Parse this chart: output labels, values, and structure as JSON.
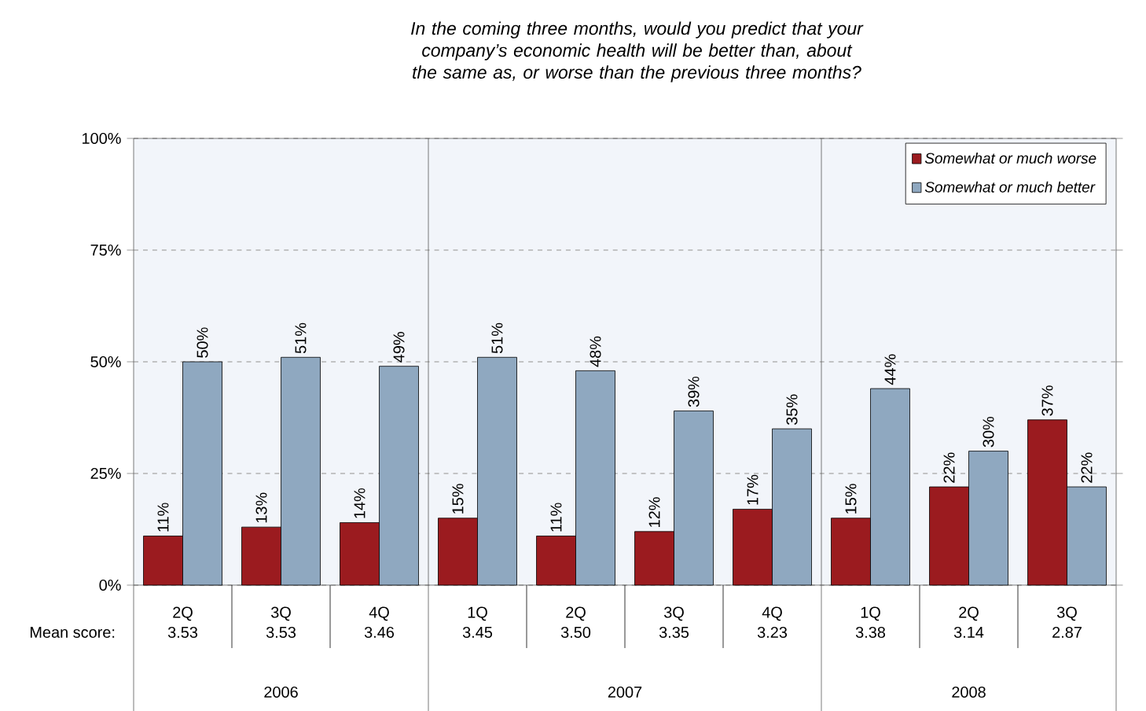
{
  "chart_data": {
    "type": "bar",
    "title": "In the coming three months, would you predict that your company’s economic health will be better than, about the same as, or worse than the previous three months?",
    "categories": [
      "2Q",
      "3Q",
      "4Q",
      "1Q",
      "2Q",
      "3Q",
      "4Q",
      "1Q",
      "2Q",
      "3Q"
    ],
    "series": [
      {
        "name": "Somewhat or much worse",
        "color": "#9b1b1f",
        "values": [
          11,
          13,
          14,
          15,
          11,
          12,
          17,
          15,
          22,
          37
        ],
        "value_labels": [
          "11%",
          "13%",
          "14%",
          "15%",
          "11%",
          "12%",
          "17%",
          "15%",
          "22%",
          "37%"
        ]
      },
      {
        "name": "Somewhat or much better",
        "color": "#8fa8c0",
        "values": [
          50,
          51,
          49,
          51,
          48,
          39,
          35,
          44,
          30,
          22
        ],
        "value_labels": [
          "50%",
          "51%",
          "49%",
          "51%",
          "48%",
          "39%",
          "35%",
          "44%",
          "30%",
          "22%"
        ]
      }
    ],
    "ylim": [
      0,
      100
    ],
    "yticks": [
      {
        "value": 0,
        "label": "0%"
      },
      {
        "value": 25,
        "label": "25%"
      },
      {
        "value": 50,
        "label": "50%"
      },
      {
        "value": 75,
        "label": "75%"
      },
      {
        "value": 100,
        "label": "100%"
      }
    ],
    "grid": "y",
    "legend": "top right",
    "annotations": [
      "Mean score:",
      "3.53",
      "3.53",
      "3.46",
      "3.45",
      "3.50",
      "3.35",
      "3.23",
      "3.38",
      "3.14",
      "2.87",
      "2006",
      "2007",
      "2008"
    ]
  }
}
